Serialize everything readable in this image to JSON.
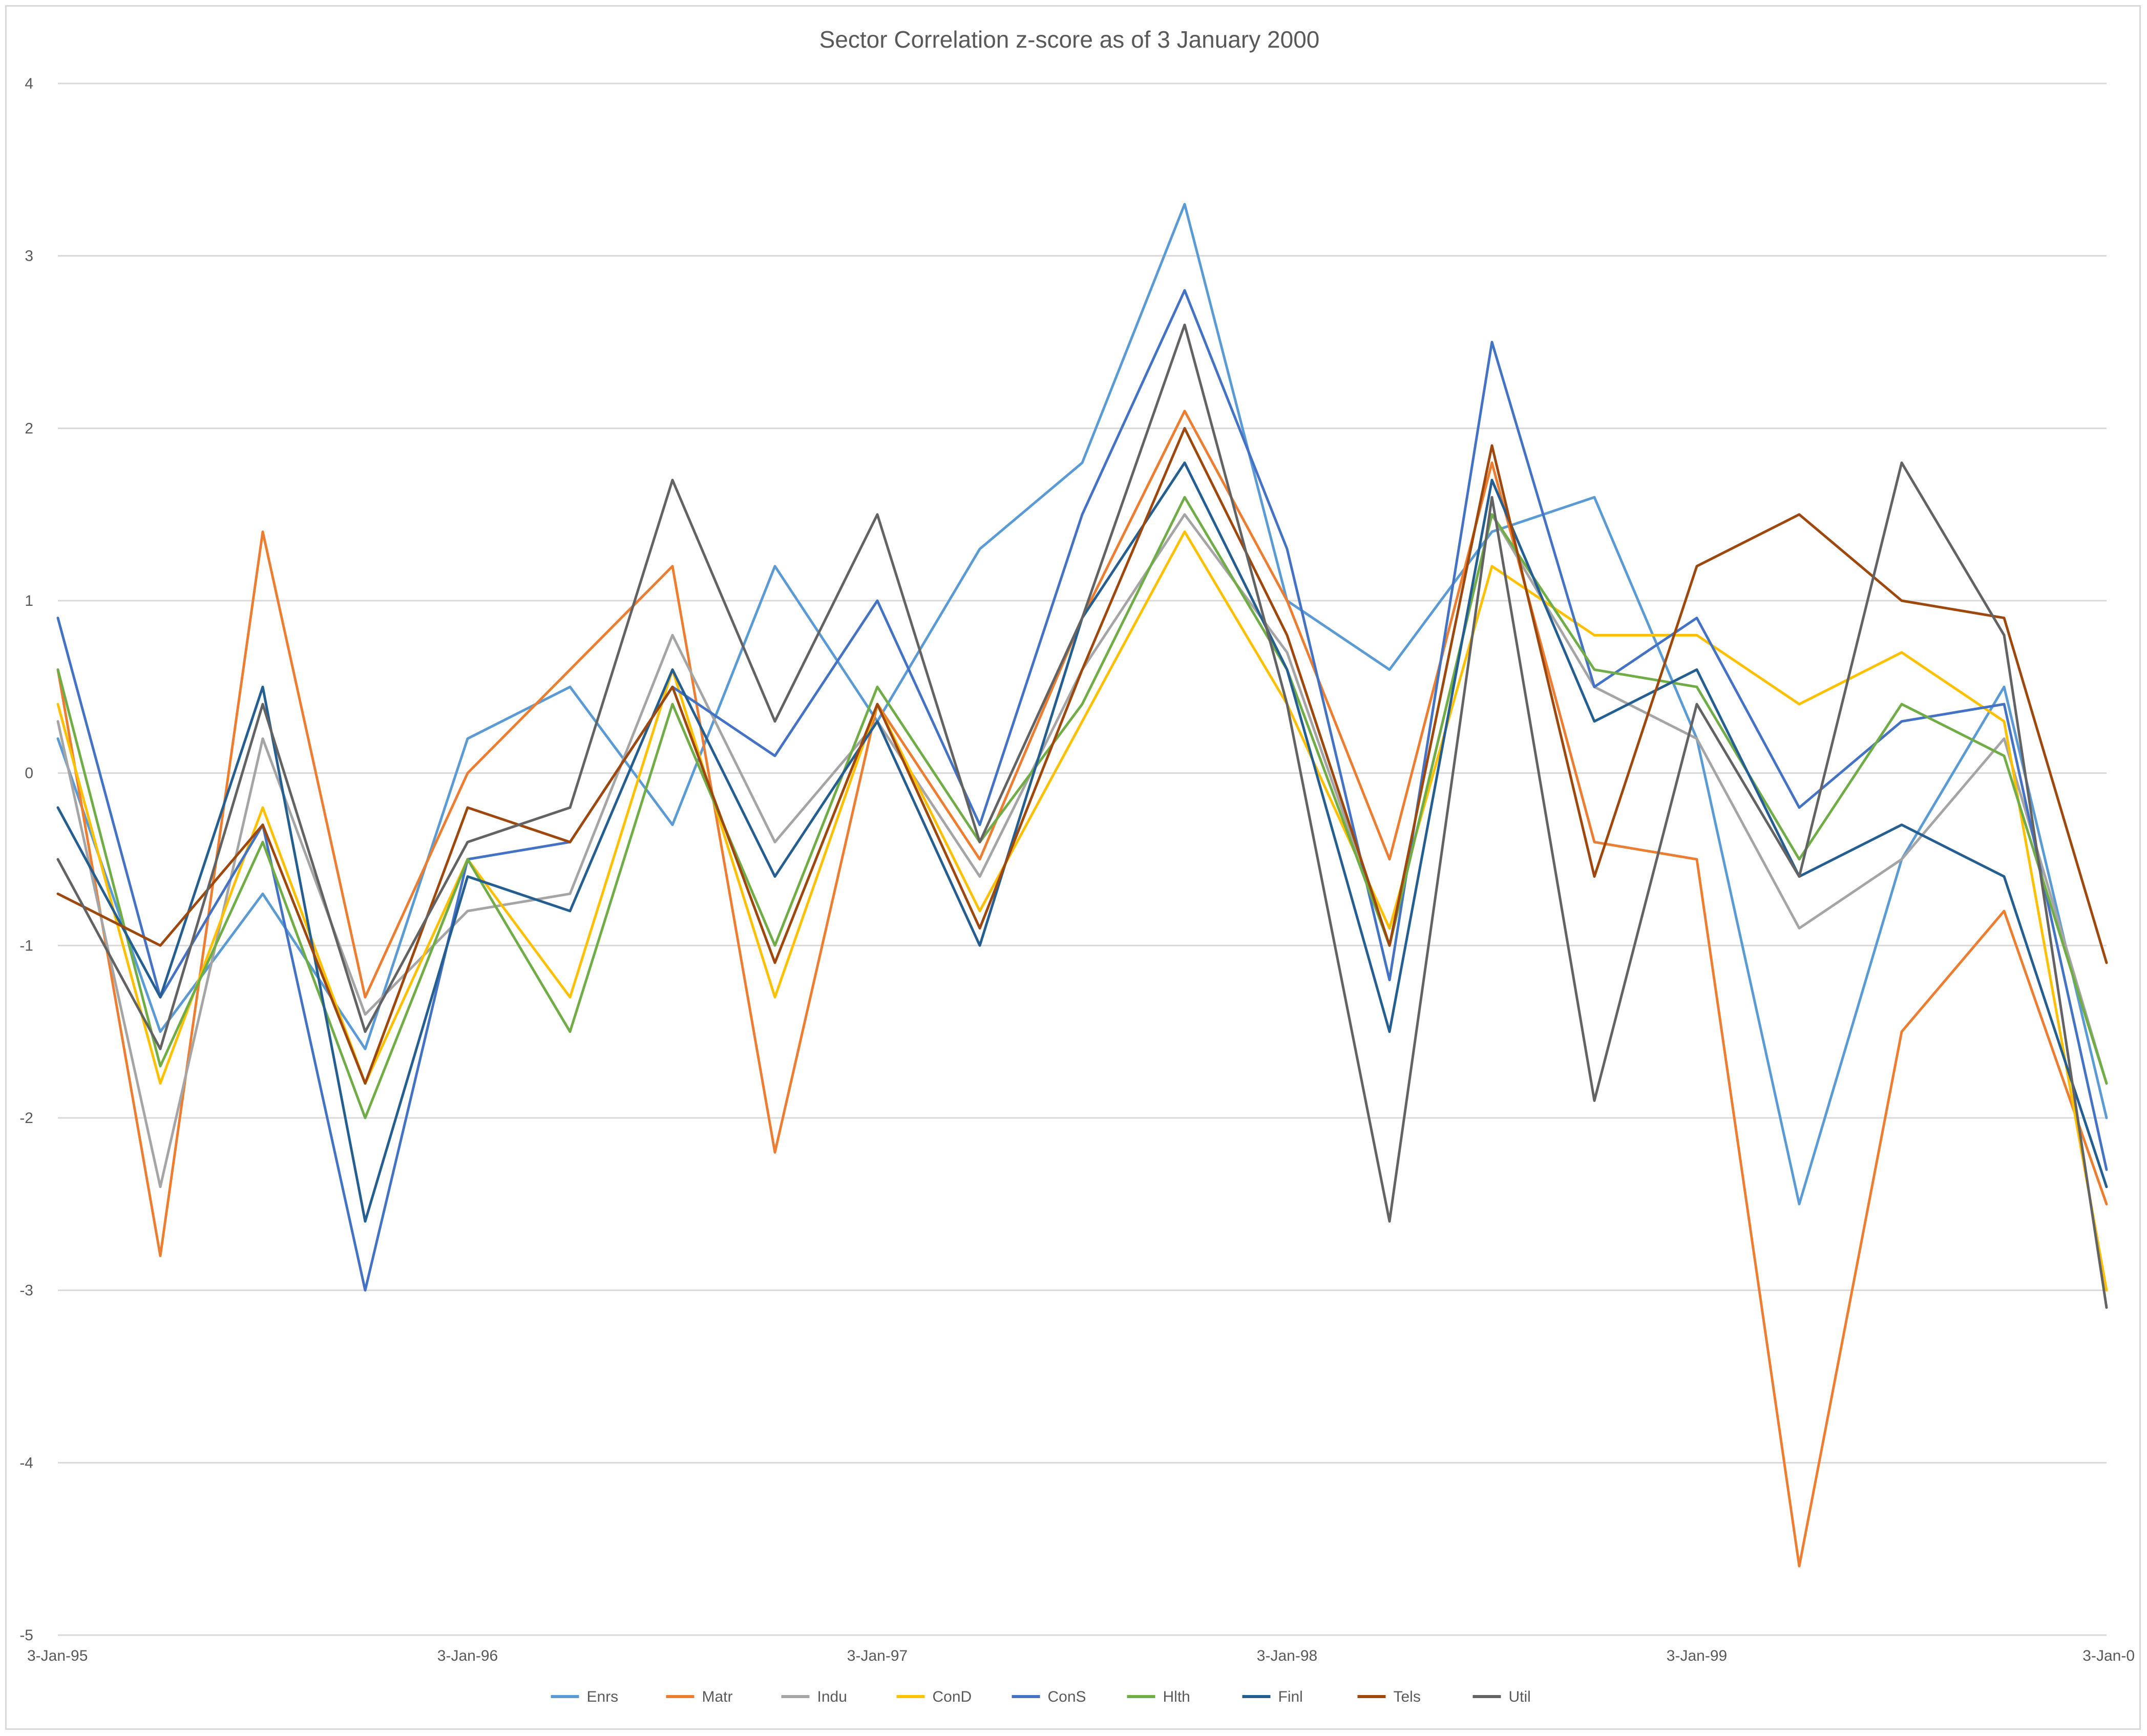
{
  "chart_data": {
    "type": "line",
    "title": "Sector Correlation z-score as of 3 January 2000",
    "xlabel": "",
    "ylabel": "",
    "ylim": [
      -5,
      4
    ],
    "yticks": [
      "4",
      "3",
      "2",
      "1",
      "0",
      "-1",
      "-2",
      "-3",
      "-4",
      "-5"
    ],
    "xticks": [
      "3-Jan-95",
      "3-Jan-96",
      "3-Jan-97",
      "3-Jan-98",
      "3-Jan-99",
      "3-Jan-0"
    ],
    "xlim": [
      0,
      5
    ],
    "grid": "horizontal",
    "legend": "bottom",
    "x": [
      0.0,
      0.25,
      0.5,
      0.75,
      1.0,
      1.25,
      1.5,
      1.75,
      2.0,
      2.25,
      2.5,
      2.75,
      3.0,
      3.25,
      3.5,
      3.75,
      4.0,
      4.25,
      4.5,
      4.75,
      5.0
    ],
    "series": [
      {
        "name": "Enrs",
        "color": "#5b9bd5",
        "values": [
          0.2,
          -1.5,
          -0.7,
          -1.6,
          0.2,
          0.5,
          -0.3,
          1.2,
          0.3,
          1.3,
          1.8,
          3.3,
          1.0,
          0.6,
          1.4,
          1.6,
          0.2,
          -2.5,
          -0.5,
          0.5,
          -2.0
        ]
      },
      {
        "name": "Matr",
        "color": "#ed7d31",
        "values": [
          0.6,
          -2.8,
          1.4,
          -1.3,
          0.0,
          0.6,
          1.2,
          -2.2,
          0.4,
          -0.5,
          0.9,
          2.1,
          1.0,
          -0.5,
          1.8,
          -0.4,
          -0.5,
          -4.6,
          -1.5,
          -0.8,
          -2.5
        ]
      },
      {
        "name": "Indu",
        "color": "#a5a5a5",
        "values": [
          0.3,
          -2.4,
          0.2,
          -1.4,
          -0.8,
          -0.7,
          0.8,
          -0.4,
          0.3,
          -0.6,
          0.6,
          1.5,
          0.7,
          -1.0,
          1.5,
          0.5,
          0.2,
          -0.9,
          -0.5,
          0.2,
          -1.8
        ]
      },
      {
        "name": "ConD",
        "color": "#ffc000",
        "values": [
          0.4,
          -1.8,
          -0.2,
          -1.8,
          -0.5,
          -1.3,
          0.6,
          -1.3,
          0.4,
          -0.8,
          0.3,
          1.4,
          0.4,
          -0.9,
          1.2,
          0.8,
          0.8,
          0.4,
          0.7,
          0.3,
          -3.0
        ]
      },
      {
        "name": "ConS",
        "color": "#4472c4",
        "values": [
          0.9,
          -1.3,
          -0.3,
          -3.0,
          -0.5,
          -0.4,
          0.5,
          0.1,
          1.0,
          -0.3,
          1.5,
          2.8,
          1.3,
          -1.2,
          2.5,
          0.5,
          0.9,
          -0.2,
          0.3,
          0.4,
          -2.3
        ]
      },
      {
        "name": "Hlth",
        "color": "#70ad47",
        "values": [
          0.6,
          -1.7,
          -0.4,
          -2.0,
          -0.5,
          -1.5,
          0.4,
          -1.0,
          0.5,
          -0.4,
          0.4,
          1.6,
          0.6,
          -1.0,
          1.5,
          0.6,
          0.5,
          -0.5,
          0.4,
          0.1,
          -1.8
        ]
      },
      {
        "name": "Finl",
        "color": "#255e91",
        "values": [
          -0.2,
          -1.3,
          0.5,
          -2.6,
          -0.6,
          -0.8,
          0.6,
          -0.6,
          0.3,
          -1.0,
          0.9,
          1.8,
          0.6,
          -1.5,
          1.7,
          0.3,
          0.6,
          -0.6,
          -0.3,
          -0.6,
          -2.4
        ]
      },
      {
        "name": "Tels",
        "color": "#9e480e",
        "values": [
          -0.7,
          -1.0,
          -0.3,
          -1.8,
          -0.2,
          -0.4,
          0.5,
          -1.1,
          0.4,
          -0.9,
          0.6,
          2.0,
          0.8,
          -1.0,
          1.9,
          -0.6,
          1.2,
          1.5,
          1.0,
          0.9,
          -1.1
        ]
      },
      {
        "name": "Util",
        "color": "#636363",
        "values": [
          -0.5,
          -1.6,
          0.4,
          -1.5,
          -0.4,
          -0.2,
          1.7,
          0.3,
          1.5,
          -0.4,
          0.9,
          2.6,
          0.4,
          -2.6,
          1.6,
          -1.9,
          0.4,
          -0.6,
          1.8,
          0.8,
          -3.1
        ]
      }
    ]
  }
}
